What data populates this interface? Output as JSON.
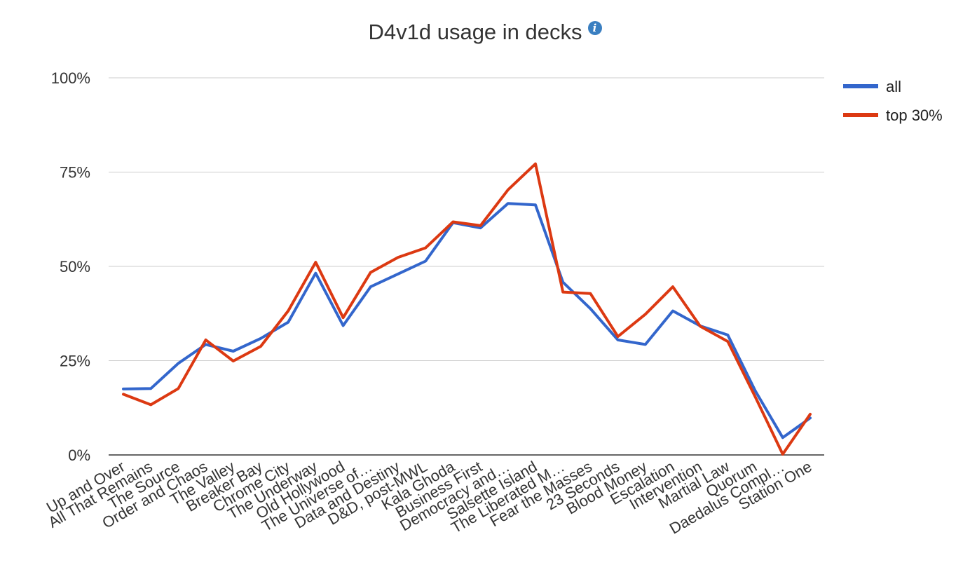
{
  "chart_data": {
    "type": "line",
    "title": "D4v1d usage in decks",
    "info_icon": "info-icon",
    "xlabel": "",
    "ylabel": "",
    "ylim": [
      0,
      100
    ],
    "y_ticks": [
      0,
      25,
      50,
      75,
      100
    ],
    "y_tick_labels": [
      "0%",
      "25%",
      "50%",
      "75%",
      "100%"
    ],
    "grid": true,
    "legend": "right",
    "categories": [
      "Up and Over",
      "All That Remains",
      "The Source",
      "Order and Chaos",
      "The Valley",
      "Breaker Bay",
      "Chrome City",
      "The Underway",
      "Old Hollywood",
      "The Universe of…",
      "Data and Destiny",
      "D&D, post-MWL",
      "Kala Ghoda",
      "Business First",
      "Democracy and…",
      "Salsette Island",
      "The Liberated M…",
      "Fear the Masses",
      "23 Seconds",
      "Blood Money",
      "Escalation",
      "Intervention",
      "Martial Law",
      "Quorum",
      "Daedalus Compl…",
      "Station One"
    ],
    "series": [
      {
        "name": "all",
        "color": "#3366cc",
        "values": [
          17.5,
          17.6,
          24.3,
          29.3,
          27.5,
          30.9,
          35.2,
          48.2,
          34.3,
          44.6,
          48.0,
          51.4,
          61.6,
          60.2,
          66.7,
          66.3,
          45.8,
          38.8,
          30.5,
          29.3,
          38.2,
          34.2,
          31.8,
          17.0,
          4.6,
          9.8
        ]
      },
      {
        "name": "top 30%",
        "color": "#dc3912",
        "values": [
          16.1,
          13.3,
          17.6,
          30.5,
          24.9,
          28.8,
          38.2,
          51.1,
          36.4,
          48.4,
          52.4,
          54.9,
          61.8,
          60.8,
          70.3,
          77.2,
          43.2,
          42.8,
          31.4,
          37.3,
          44.6,
          34.1,
          30.1,
          15.4,
          0.2,
          10.8
        ]
      }
    ]
  }
}
